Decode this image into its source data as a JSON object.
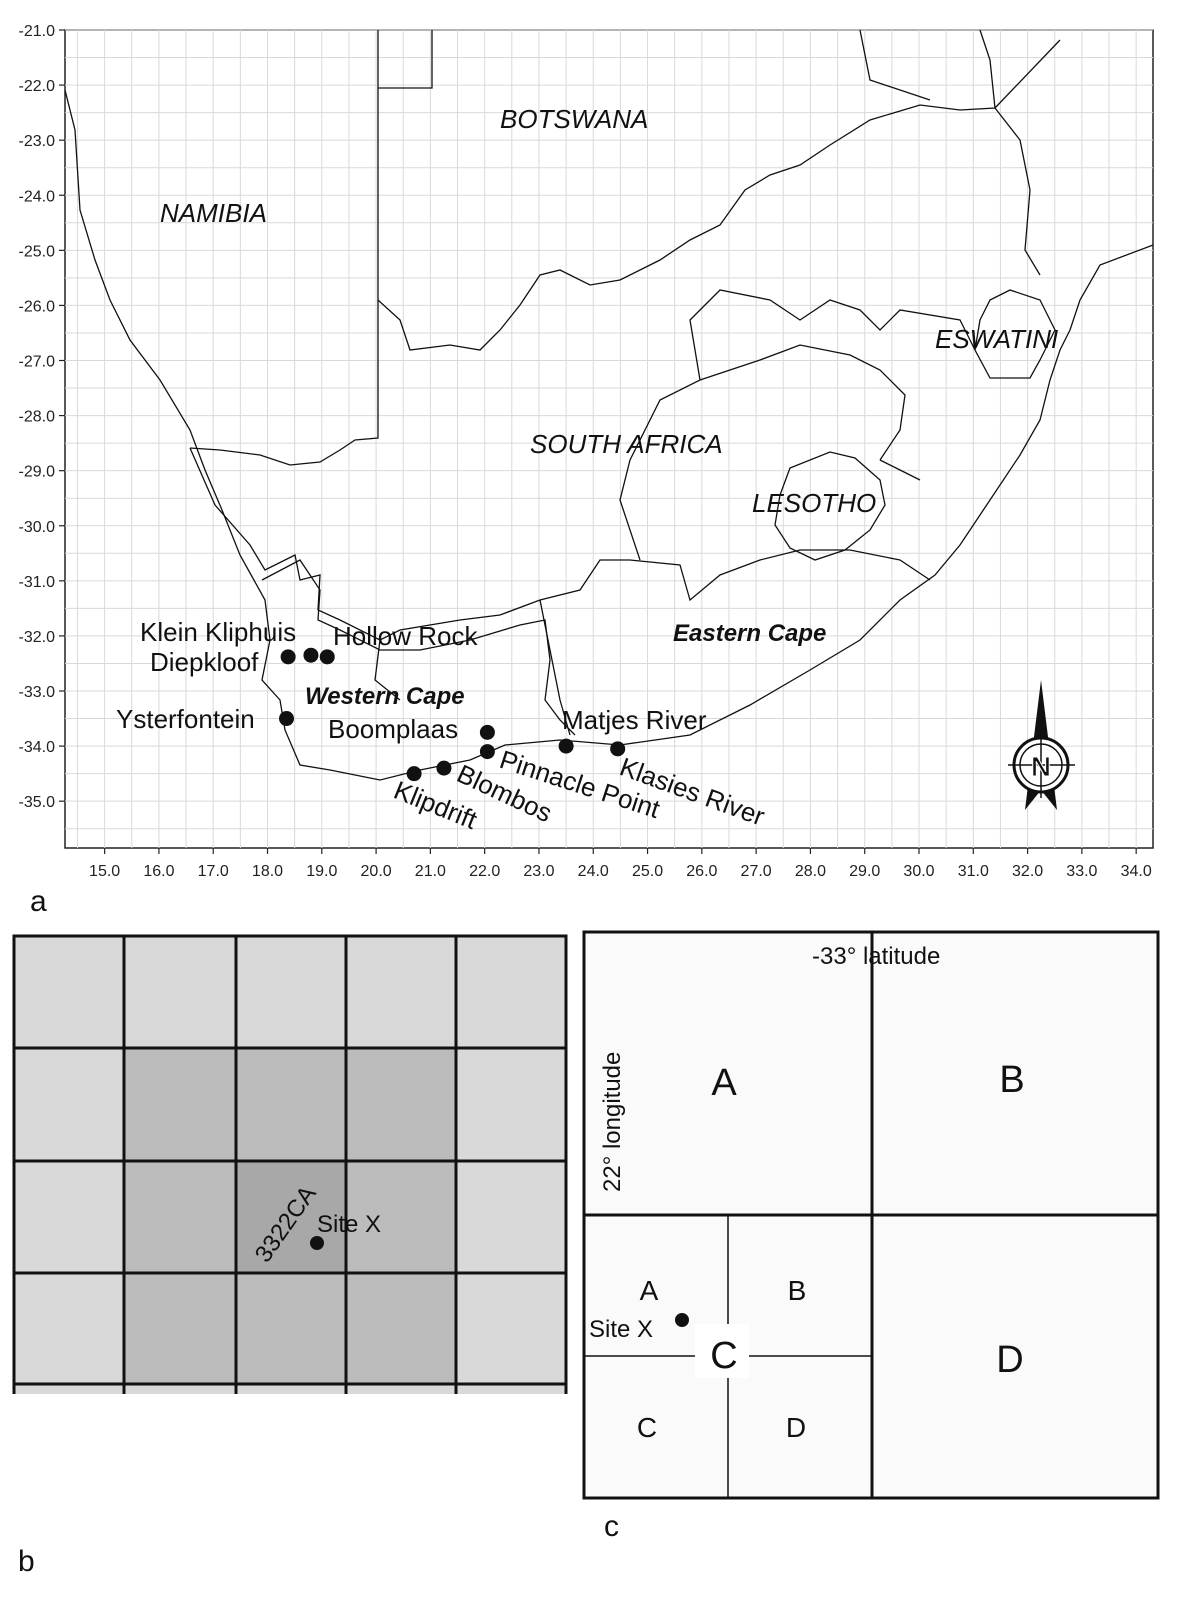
{
  "panel_a": {
    "y_ticks": [
      "-21.0",
      "-22.0",
      "-23.0",
      "-24.0",
      "-25.0",
      "-26.0",
      "-27.0",
      "-28.0",
      "-29.0",
      "-30.0",
      "-31.0",
      "-32.0",
      "-33.0",
      "-34.0",
      "-35.0"
    ],
    "x_ticks": [
      "15.0",
      "16.0",
      "17.0",
      "18.0",
      "19.0",
      "20.0",
      "21.0",
      "22.0",
      "23.0",
      "24.0",
      "25.0",
      "26.0",
      "27.0",
      "28.0",
      "29.0",
      "30.0",
      "31.0",
      "32.0",
      "33.0",
      "34.0"
    ],
    "countries": {
      "botswana": "BOTSWANA",
      "namibia": "NAMIBIA",
      "eswatini": "ESWATINI",
      "south_africa": "SOUTH AFRICA",
      "lesotho": "LESOTHO"
    },
    "provinces": {
      "eastern_cape": "Eastern Cape",
      "western_cape": "Western Cape"
    },
    "sites": [
      {
        "id": "klein-kliphuis",
        "label": "Klein Kliphuis",
        "lon": 18.8,
        "lat": -32.35
      },
      {
        "id": "hollow-rock",
        "label": "Hollow Rock",
        "lon": 19.1,
        "lat": -32.38
      },
      {
        "id": "diepkloof",
        "label": "Diepkloof",
        "lon": 18.38,
        "lat": -32.38
      },
      {
        "id": "ysterfontein",
        "label": "Ysterfontein",
        "lon": 18.35,
        "lat": -33.5
      },
      {
        "id": "boomplaas",
        "label": "Boomplaas",
        "lon": 22.05,
        "lat": -33.75
      },
      {
        "id": "matjes-river",
        "label": "Matjes River",
        "lon": 23.5,
        "lat": -34.0
      },
      {
        "id": "pinnacle-point",
        "label": "Pinnacle Point",
        "lon": 22.05,
        "lat": -34.1
      },
      {
        "id": "klasies-river",
        "label": "Klasies River",
        "lon": 24.45,
        "lat": -34.05
      },
      {
        "id": "blombos",
        "label": "Blombos",
        "lon": 21.25,
        "lat": -34.4
      },
      {
        "id": "klipdrift",
        "label": "Klipdrift",
        "lon": 20.7,
        "lat": -34.5
      }
    ],
    "north_label": "N",
    "letter": "a"
  },
  "panel_b": {
    "cell_label": "3322CA",
    "site_label": "Site X",
    "letter": "b"
  },
  "panel_c": {
    "latitude_label": "-33° latitude",
    "longitude_label": "22° longitude",
    "quadrants": {
      "a": "A",
      "b": "B",
      "c": "C",
      "d": "D"
    },
    "sub_quadrants": {
      "a": "A",
      "b": "B",
      "c": "C",
      "d": "D"
    },
    "site_label": "Site X",
    "letter": "c"
  },
  "colors": {
    "grid": "#d9d9d9",
    "border": "#000000",
    "light_cell": "#d9d9d9",
    "mid_cell": "#bcbcbc",
    "dark_cell": "#a8a8a8"
  }
}
